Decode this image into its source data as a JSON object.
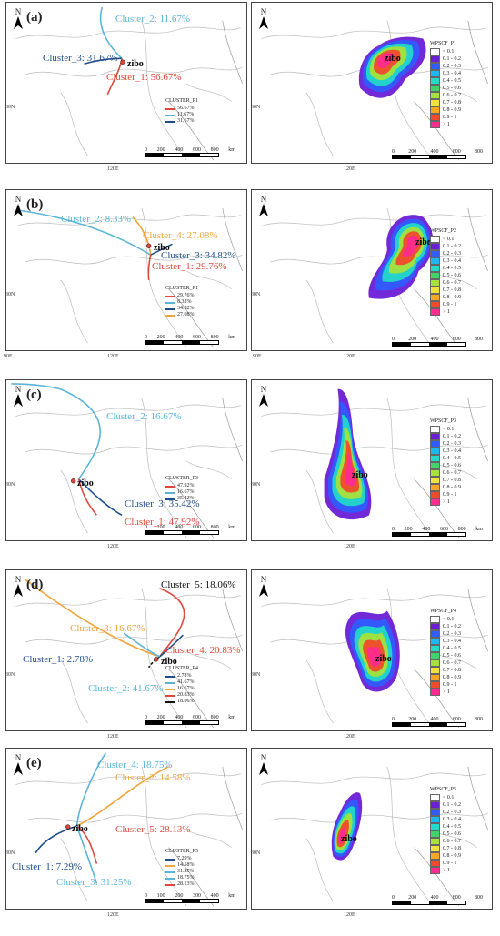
{
  "rows": [
    {
      "id": "a",
      "label": "(a)",
      "clusters": [
        {
          "text": "Cluster_2: 11.67%",
          "color": "#5ab4d8"
        },
        {
          "text": "Cluster_3: 31.67%",
          "color": "#1f4e8c"
        },
        {
          "text": "Cluster_1: 56.67%",
          "color": "#e0473a"
        }
      ],
      "zibo": "zibo",
      "left_legend": {
        "title": "CLUSTER_P1",
        "items": [
          "56.67%",
          "11.67%",
          "31.67%"
        ],
        "colors": [
          "#e0473a",
          "#5ab4d8",
          "#1f4e8c"
        ]
      },
      "left_scale": [
        "0",
        "200",
        "400",
        "600",
        "800",
        "km"
      ],
      "right_legend_title": "WPSCF_P1",
      "right_scale": [
        "0",
        "200",
        "400",
        "600",
        "800"
      ],
      "ticks_left": {
        "lat": "30N",
        "lon": "120E"
      },
      "ticks_right": {
        "lat": "30N",
        "lon": "120E"
      }
    },
    {
      "id": "b",
      "label": "(b)",
      "clusters": [
        {
          "text": "Cluster_2: 8.33%",
          "color": "#5ab4d8"
        },
        {
          "text": "Cluster_4: 27.08%",
          "color": "#f0a43a"
        },
        {
          "text": "Cluster_3: 34.82%",
          "color": "#1f4e8c"
        },
        {
          "text": "Cluster_1: 29.76%",
          "color": "#e0473a"
        }
      ],
      "zibo": "zibo",
      "left_legend": {
        "title": "CLUSTER_P1",
        "items": [
          "29.76%",
          "8.33%",
          "34.82%",
          "27.08%"
        ],
        "colors": [
          "#e0473a",
          "#5ab4d8",
          "#1f4e8c",
          "#f0a43a"
        ]
      },
      "left_scale": [
        "0",
        "200",
        "400",
        "600",
        "800",
        "km"
      ],
      "right_legend_title": "WPSCF_P2",
      "right_scale": [
        "0",
        "200",
        "400",
        "600",
        "800"
      ],
      "ticks_left": {
        "lat": "30N",
        "lon": "120E",
        "lon2": "90E"
      },
      "ticks_right": {
        "lat": "30N",
        "lon": "120E",
        "lon2": "90E"
      }
    },
    {
      "id": "c",
      "label": "(c)",
      "clusters": [
        {
          "text": "Cluster_2: 16.67%",
          "color": "#5ab4d8"
        },
        {
          "text": "Cluster_3: 35.42%",
          "color": "#1f4e8c"
        },
        {
          "text": "Cluster_1: 47.92%",
          "color": "#e0473a"
        }
      ],
      "zibo": "zibo",
      "left_legend": {
        "title": "CLUSTER_P3",
        "items": [
          "47.92%",
          "16.67%",
          "35.42%"
        ],
        "colors": [
          "#e0473a",
          "#5ab4d8",
          "#1f4e8c"
        ]
      },
      "left_scale": [
        "0",
        "200",
        "400",
        "600",
        "800",
        "km"
      ],
      "right_legend_title": "WPSCF_P3",
      "right_scale": [
        "0",
        "200",
        "400",
        "600",
        "800",
        "km"
      ],
      "ticks_left": {
        "lat": "30N",
        "lon": "120E"
      },
      "ticks_right": {
        "lat": "30N",
        "lon": "120E"
      }
    },
    {
      "id": "d",
      "label": "(d)",
      "clusters": [
        {
          "text": "Cluster_3: 16.67%",
          "color": "#f0a43a"
        },
        {
          "text": "Cluster_5: 18.06%",
          "color": "#111111"
        },
        {
          "text": "Cluster_4: 20.83%",
          "color": "#e0473a"
        },
        {
          "text": "Cluster_1: 2.78%",
          "color": "#1f4e8c"
        },
        {
          "text": "Cluster_2: 41.67%",
          "color": "#5ab4d8"
        }
      ],
      "zibo": "zibo",
      "left_legend": {
        "title": "CLUSTER_P4",
        "items": [
          "2.78%",
          "41.67%",
          "16.67%",
          "20.83%",
          "18.06%"
        ],
        "colors": [
          "#1f4e8c",
          "#5ab4d8",
          "#f0a43a",
          "#e0473a",
          "#111111"
        ]
      },
      "left_scale": [
        "0",
        "200",
        "400",
        "600",
        "800",
        "km"
      ],
      "right_legend_title": "WPSCF_P4",
      "right_scale": [
        "0",
        "200",
        "400",
        "600",
        "800"
      ],
      "ticks_left": {
        "lat": "30N",
        "lon": "120E"
      },
      "ticks_right": {
        "lat": "30N",
        "lon": "120E"
      }
    },
    {
      "id": "e",
      "label": "(e)",
      "clusters": [
        {
          "text": "Cluster_4: 18.75%",
          "color": "#5ab4d8"
        },
        {
          "text": "Cluster_2: 14.58%",
          "color": "#f0a43a"
        },
        {
          "text": "Cluster_5: 28.13%",
          "color": "#e0473a"
        },
        {
          "text": "Cluster_1: 7.29%",
          "color": "#1f4e8c"
        },
        {
          "text": "Cluster_3: 31.25%",
          "color": "#5ab4d8"
        }
      ],
      "zibo": "zibo",
      "left_legend": {
        "title": "CLUSTER_P5",
        "items": [
          "7.29%",
          "14.58%",
          "31.25%",
          "18.75%",
          "28.13%"
        ],
        "colors": [
          "#1f4e8c",
          "#f0a43a",
          "#5ab4d8",
          "#5ab4d8",
          "#e0473a"
        ]
      },
      "left_scale": [
        "0",
        "100",
        "200",
        "300",
        "400",
        "km"
      ],
      "right_legend_title": "WPSCF_P5",
      "right_scale": [
        "0",
        "200",
        "400",
        "600",
        "800"
      ],
      "ticks_left": {
        "lat": "30N",
        "lon": "120E"
      },
      "ticks_right": {
        "lat": "30N",
        "lon": "120E"
      }
    }
  ],
  "wpscf_legend_items": [
    "< 0.1",
    "0.1 - 0.2",
    "0.2 - 0.3",
    "0.3 - 0.4",
    "0.4 - 0.5",
    "0.5 - 0.6",
    "0.6 - 0.7",
    "0.7 - 0.8",
    "0.8 - 0.9",
    "0.9 - 1",
    "> 1"
  ],
  "wpscf_legend_colors": [
    "#ffffff",
    "#6a1fd6",
    "#2f5bff",
    "#19b8f0",
    "#23d9c8",
    "#3fd46a",
    "#a6e23a",
    "#f0e23a",
    "#f5a623",
    "#f04a2a",
    "#ff2b8f"
  ],
  "north": "N"
}
